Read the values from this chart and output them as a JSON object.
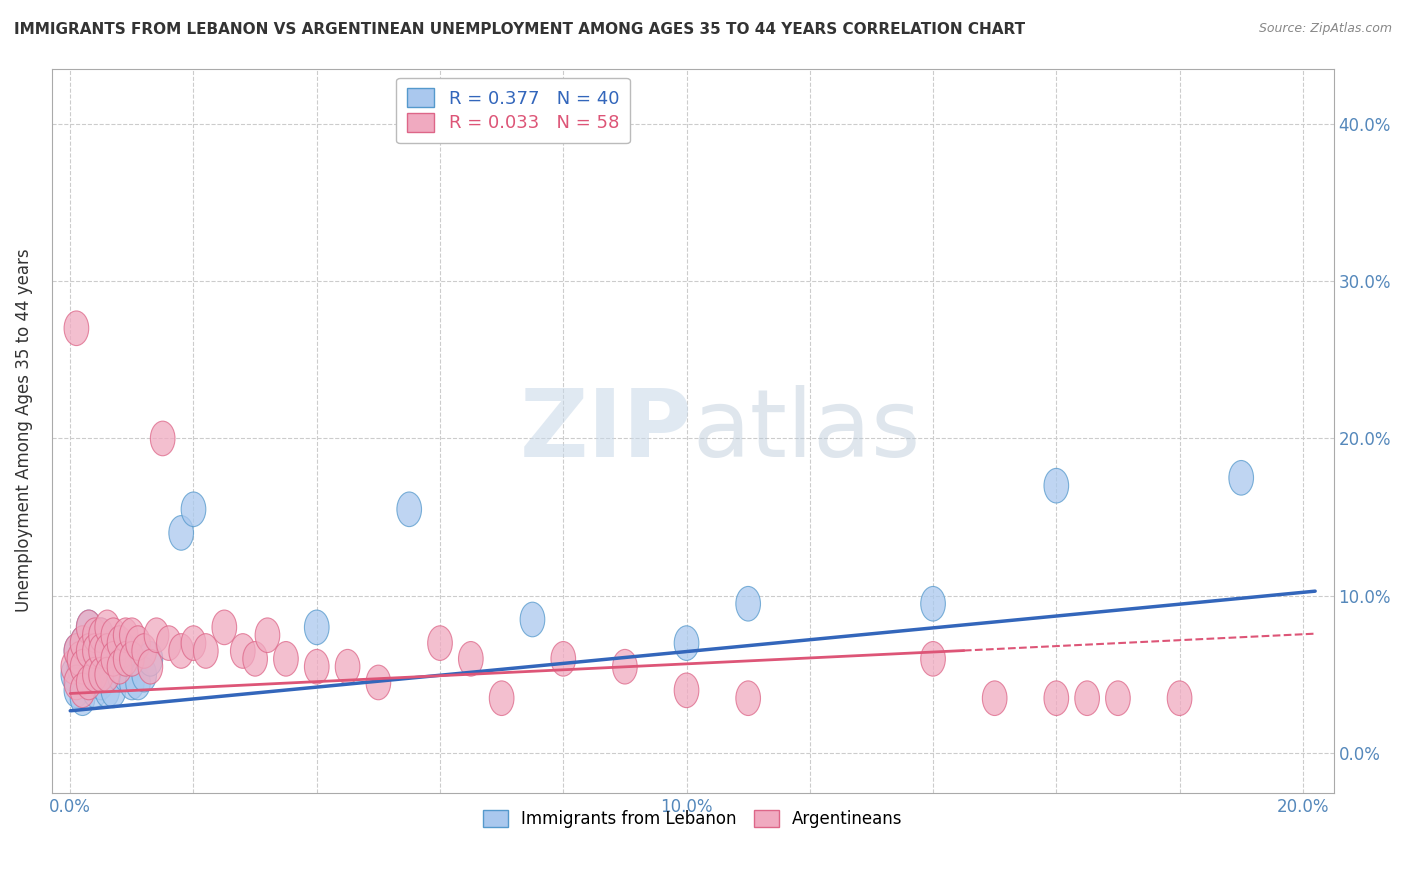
{
  "title": "IMMIGRANTS FROM LEBANON VS ARGENTINEAN UNEMPLOYMENT AMONG AGES 35 TO 44 YEARS CORRELATION CHART",
  "source": "Source: ZipAtlas.com",
  "xlabel_ticks": [
    "0.0%",
    "",
    "",
    "",
    "",
    "10.0%",
    "",
    "",
    "",
    "",
    "20.0%"
  ],
  "xlabel_tick_vals": [
    0.0,
    0.02,
    0.04,
    0.06,
    0.08,
    0.1,
    0.12,
    0.14,
    0.16,
    0.18,
    0.2
  ],
  "ylabel_ticks": [
    "0.0%",
    "10.0%",
    "20.0%",
    "30.0%",
    "40.0%"
  ],
  "ylabel_tick_vals": [
    0.0,
    0.1,
    0.2,
    0.3,
    0.4
  ],
  "ylabel": "Unemployment Among Ages 35 to 44 years",
  "xlim": [
    -0.003,
    0.205
  ],
  "ylim": [
    -0.025,
    0.435
  ],
  "legend_blue_label": "R = 0.377   N = 40",
  "legend_pink_label": "R = 0.033   N = 58",
  "legend_immigrants_label": "Immigrants from Lebanon",
  "legend_argentineans_label": "Argentineans",
  "blue_color": "#aac8ee",
  "pink_color": "#f0aac0",
  "blue_edge_color": "#5599cc",
  "pink_edge_color": "#dd6688",
  "blue_line_color": "#3366bb",
  "pink_line_color": "#dd5577",
  "watermark_zip": "ZIP",
  "watermark_atlas": "atlas",
  "watermark_zip_color": "#c8d8e8",
  "watermark_atlas_color": "#b8c8d8",
  "grid_color": "#cccccc",
  "background_color": "#ffffff",
  "blue_scatter_x": [
    0.0005,
    0.001,
    0.001,
    0.0015,
    0.002,
    0.002,
    0.002,
    0.003,
    0.003,
    0.003,
    0.004,
    0.004,
    0.004,
    0.005,
    0.005,
    0.005,
    0.006,
    0.006,
    0.006,
    0.007,
    0.007,
    0.008,
    0.008,
    0.009,
    0.009,
    0.01,
    0.01,
    0.011,
    0.012,
    0.013,
    0.018,
    0.02,
    0.04,
    0.055,
    0.075,
    0.1,
    0.11,
    0.14,
    0.16,
    0.19
  ],
  "blue_scatter_y": [
    0.05,
    0.065,
    0.04,
    0.055,
    0.07,
    0.055,
    0.035,
    0.08,
    0.06,
    0.045,
    0.07,
    0.055,
    0.04,
    0.075,
    0.06,
    0.045,
    0.07,
    0.055,
    0.04,
    0.065,
    0.04,
    0.065,
    0.05,
    0.065,
    0.05,
    0.06,
    0.045,
    0.045,
    0.05,
    0.06,
    0.14,
    0.155,
    0.08,
    0.155,
    0.085,
    0.07,
    0.095,
    0.095,
    0.17,
    0.175
  ],
  "pink_scatter_x": [
    0.0005,
    0.001,
    0.001,
    0.001,
    0.0015,
    0.002,
    0.002,
    0.002,
    0.003,
    0.003,
    0.003,
    0.004,
    0.004,
    0.004,
    0.005,
    0.005,
    0.005,
    0.006,
    0.006,
    0.006,
    0.007,
    0.007,
    0.008,
    0.008,
    0.009,
    0.009,
    0.01,
    0.01,
    0.011,
    0.012,
    0.013,
    0.014,
    0.015,
    0.016,
    0.018,
    0.02,
    0.022,
    0.025,
    0.028,
    0.03,
    0.032,
    0.035,
    0.04,
    0.045,
    0.05,
    0.06,
    0.065,
    0.07,
    0.08,
    0.09,
    0.1,
    0.11,
    0.14,
    0.15,
    0.16,
    0.165,
    0.17,
    0.18
  ],
  "pink_scatter_y": [
    0.055,
    0.27,
    0.065,
    0.045,
    0.06,
    0.07,
    0.055,
    0.04,
    0.08,
    0.065,
    0.045,
    0.075,
    0.065,
    0.05,
    0.075,
    0.065,
    0.05,
    0.08,
    0.065,
    0.05,
    0.075,
    0.06,
    0.07,
    0.055,
    0.075,
    0.06,
    0.075,
    0.06,
    0.07,
    0.065,
    0.055,
    0.075,
    0.2,
    0.07,
    0.065,
    0.07,
    0.065,
    0.08,
    0.065,
    0.06,
    0.075,
    0.06,
    0.055,
    0.055,
    0.045,
    0.07,
    0.06,
    0.035,
    0.06,
    0.055,
    0.04,
    0.035,
    0.06,
    0.035,
    0.035,
    0.035,
    0.035,
    0.035
  ],
  "blue_line_x0": 0.0,
  "blue_line_x1": 0.202,
  "blue_line_y0": 0.027,
  "blue_line_y1": 0.103,
  "pink_line_x0": 0.0,
  "pink_line_x1": 0.202,
  "pink_line_y0": 0.038,
  "pink_line_y1": 0.076
}
